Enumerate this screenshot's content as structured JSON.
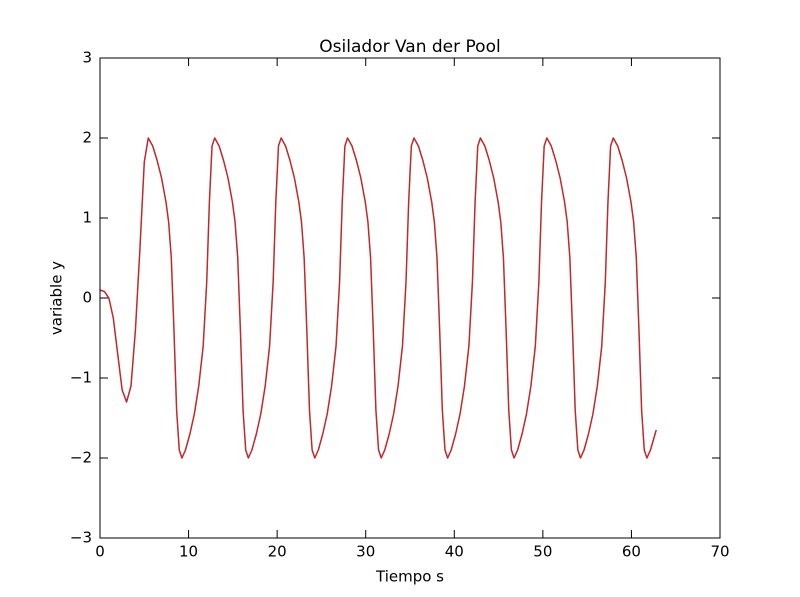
{
  "chart_data": {
    "type": "line",
    "title": "Osilador Van der Pool",
    "x_label": "Tiempo s",
    "y_label": "variable y",
    "color": "#c0282a",
    "x": [
      0,
      0.5,
      1,
      1.5,
      2,
      2.5,
      3,
      3.5,
      4,
      4.5,
      5,
      5.45,
      5.95,
      6.45,
      6.95,
      7.45,
      7.75,
      8.05,
      8.35,
      8.65,
      8.95,
      9.25,
      9.65,
      10.15,
      10.65,
      11.15,
      11.65,
      12.05,
      12.35,
      12.65,
      12.95,
      13.45,
      13.95,
      14.45,
      14.95,
      15.25,
      15.55,
      15.85,
      16.15,
      16.45,
      16.75,
      17.15,
      17.65,
      18.15,
      18.65,
      19.15,
      19.55,
      19.85,
      20.15,
      20.45,
      20.95,
      21.45,
      21.95,
      22.45,
      22.75,
      23.05,
      23.35,
      23.65,
      23.95,
      24.25,
      24.65,
      25.15,
      25.65,
      26.15,
      26.65,
      27.05,
      27.35,
      27.65,
      27.95,
      28.45,
      28.95,
      29.45,
      29.95,
      30.25,
      30.55,
      30.85,
      31.15,
      31.45,
      31.75,
      32.15,
      32.65,
      33.15,
      33.65,
      34.15,
      34.55,
      34.85,
      35.15,
      35.45,
      35.95,
      36.45,
      36.95,
      37.45,
      37.75,
      38.05,
      38.35,
      38.65,
      38.95,
      39.25,
      39.65,
      40.15,
      40.65,
      41.15,
      41.65,
      42.05,
      42.35,
      42.65,
      42.95,
      43.45,
      43.95,
      44.45,
      44.95,
      45.25,
      45.55,
      45.85,
      46.15,
      46.45,
      46.75,
      47.15,
      47.65,
      48.15,
      48.65,
      49.15,
      49.55,
      49.85,
      50.15,
      50.45,
      50.95,
      51.45,
      51.95,
      52.45,
      52.75,
      53.05,
      53.35,
      53.65,
      53.95,
      54.25,
      54.65,
      55.15,
      55.65,
      56.15,
      56.65,
      57.05,
      57.35,
      57.65,
      57.95,
      58.45,
      58.95,
      59.45,
      59.95,
      60.25,
      60.55,
      60.85,
      61.15,
      61.45,
      61.75,
      62.15,
      62.8
    ],
    "values": [
      0.1,
      0.08,
      0,
      -0.25,
      -0.7,
      -1.15,
      -1.3,
      -1.1,
      -0.4,
      0.6,
      1.7,
      2.0,
      1.9,
      1.72,
      1.5,
      1.2,
      0.95,
      0.5,
      -0.4,
      -1.4,
      -1.9,
      -2.0,
      -1.9,
      -1.7,
      -1.45,
      -1.1,
      -0.6,
      0.2,
      1.2,
      1.9,
      2.0,
      1.9,
      1.72,
      1.5,
      1.2,
      0.95,
      0.5,
      -0.4,
      -1.4,
      -1.9,
      -2.0,
      -1.9,
      -1.7,
      -1.45,
      -1.1,
      -0.6,
      0.2,
      1.2,
      1.9,
      2.0,
      1.9,
      1.72,
      1.5,
      1.2,
      0.95,
      0.5,
      -0.4,
      -1.4,
      -1.9,
      -2.0,
      -1.9,
      -1.7,
      -1.45,
      -1.1,
      -0.6,
      0.2,
      1.2,
      1.9,
      2.0,
      1.9,
      1.72,
      1.5,
      1.2,
      0.95,
      0.5,
      -0.4,
      -1.4,
      -1.9,
      -2.0,
      -1.9,
      -1.7,
      -1.45,
      -1.1,
      -0.6,
      0.2,
      1.2,
      1.9,
      2.0,
      1.9,
      1.72,
      1.5,
      1.2,
      0.95,
      0.5,
      -0.4,
      -1.4,
      -1.9,
      -2.0,
      -1.9,
      -1.7,
      -1.45,
      -1.1,
      -0.6,
      0.2,
      1.2,
      1.9,
      2.0,
      1.9,
      1.72,
      1.5,
      1.2,
      0.95,
      0.5,
      -0.4,
      -1.4,
      -1.9,
      -2.0,
      -1.9,
      -1.7,
      -1.45,
      -1.1,
      -0.6,
      0.2,
      1.2,
      1.9,
      2.0,
      1.9,
      1.72,
      1.5,
      1.2,
      0.95,
      0.5,
      -0.4,
      -1.4,
      -1.9,
      -2.0,
      -1.9,
      -1.7,
      -1.45,
      -1.1,
      -0.6,
      0.2,
      1.2,
      1.9,
      2.0,
      1.9,
      1.72,
      1.5,
      1.2,
      0.95,
      0.5,
      -0.4,
      -1.4,
      -1.9,
      -2.0,
      -1.9,
      -1.65
    ],
    "xlim": [
      0,
      70
    ],
    "xticks": [
      0,
      10,
      20,
      30,
      40,
      50,
      60,
      70
    ],
    "ylim": [
      -3,
      3
    ],
    "yticks": [
      {
        "value": -3,
        "label": "−3"
      },
      {
        "value": -2,
        "label": "−2"
      },
      {
        "value": -1,
        "label": "−1"
      },
      0,
      1,
      2,
      3
    ],
    "grid": false
  }
}
